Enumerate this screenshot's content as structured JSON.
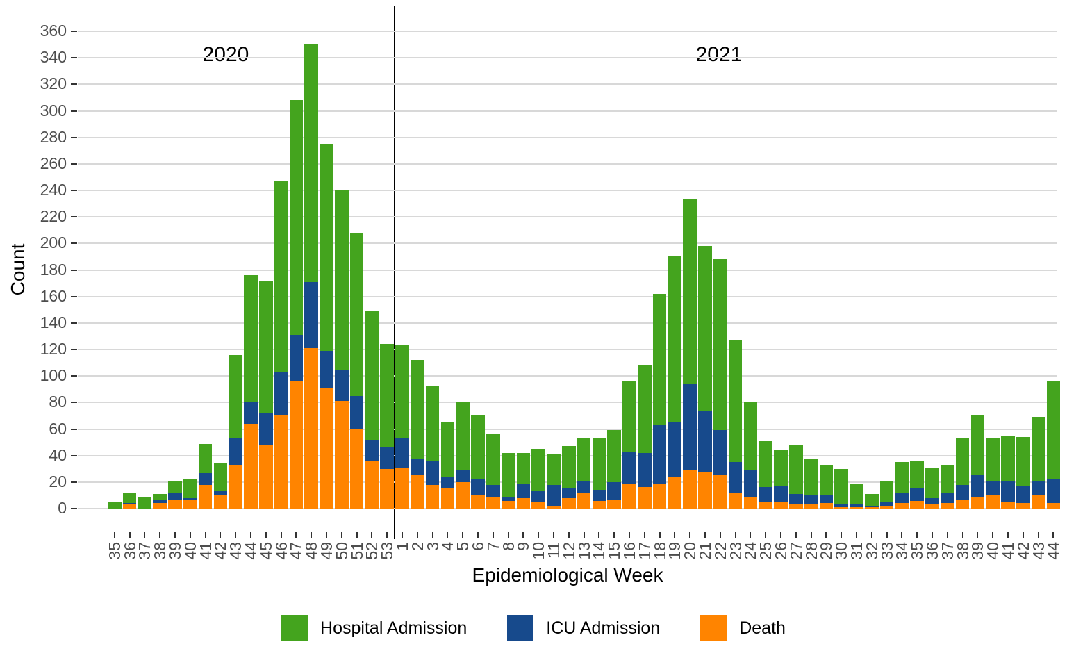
{
  "annotations": {
    "year_left": "2020",
    "year_right": "2021"
  },
  "y_axis": {
    "label": "Count",
    "ticks": [
      0,
      20,
      40,
      60,
      80,
      100,
      120,
      140,
      160,
      180,
      200,
      220,
      240,
      260,
      280,
      300,
      320,
      340,
      360
    ]
  },
  "x_axis": {
    "label": "Epidemiological Week"
  },
  "legend": [
    {
      "label": "Hospital Admission",
      "color": "#44a41e"
    },
    {
      "label": "ICU Admission",
      "color": "#174a8c"
    },
    {
      "label": "Death",
      "color": "#ff8400"
    }
  ],
  "colors": {
    "hospital": "#44a41e",
    "icu": "#174a8c",
    "death": "#ff8400",
    "gridline": "#d8d8d8",
    "axis_text": "#4d4d4d",
    "divider": "#000000"
  },
  "chart_data": {
    "type": "bar",
    "stacked": true,
    "title": "",
    "xlabel": "Epidemiological Week",
    "ylabel": "Count",
    "ylim": [
      0,
      378
    ],
    "grid": true,
    "legend_position": "bottom",
    "year_split_after_index": 18,
    "categories": [
      "35",
      "36",
      "37",
      "38",
      "39",
      "40",
      "41",
      "42",
      "43",
      "44",
      "45",
      "46",
      "47",
      "48",
      "49",
      "50",
      "51",
      "52",
      "53",
      "1",
      "2",
      "3",
      "4",
      "5",
      "6",
      "7",
      "8",
      "9",
      "10",
      "11",
      "12",
      "13",
      "14",
      "15",
      "16",
      "17",
      "18",
      "19",
      "20",
      "21",
      "22",
      "23",
      "24",
      "25",
      "26",
      "27",
      "28",
      "29",
      "30",
      "31",
      "32",
      "33",
      "34",
      "35",
      "36",
      "37",
      "38",
      "39",
      "40",
      "41",
      "42",
      "43",
      "44"
    ],
    "category_years": {
      "2020_weeks": "35-53",
      "2021_weeks": "1-44"
    },
    "series": [
      {
        "name": "Death",
        "color": "#ff8400",
        "values": [
          0,
          3,
          0,
          4,
          7,
          6,
          18,
          10,
          33,
          64,
          48,
          70,
          96,
          121,
          91,
          81,
          60,
          36,
          30,
          31,
          25,
          18,
          15,
          20,
          10,
          9,
          6,
          8,
          5,
          2,
          8,
          12,
          6,
          7,
          19,
          16,
          19,
          24,
          29,
          28,
          25,
          12,
          9,
          5,
          5,
          3,
          3,
          4,
          1,
          1,
          1,
          2,
          4,
          6,
          3,
          4,
          7,
          9,
          10,
          5,
          4,
          10,
          4
        ]
      },
      {
        "name": "ICU Admission",
        "color": "#174a8c",
        "values": [
          0,
          1,
          0,
          3,
          5,
          2,
          9,
          3,
          20,
          16,
          24,
          33,
          35,
          50,
          28,
          24,
          25,
          16,
          16,
          22,
          12,
          18,
          9,
          9,
          12,
          9,
          3,
          11,
          8,
          16,
          7,
          9,
          8,
          13,
          24,
          26,
          44,
          41,
          65,
          46,
          34,
          23,
          20,
          11,
          12,
          8,
          7,
          6,
          2,
          2,
          1,
          3,
          8,
          9,
          5,
          8,
          11,
          16,
          11,
          16,
          13,
          11,
          18
        ]
      },
      {
        "name": "Hospital Admission",
        "color": "#44a41e",
        "values": [
          5,
          8,
          9,
          4,
          9,
          14,
          22,
          21,
          63,
          96,
          100,
          144,
          177,
          179,
          156,
          135,
          123,
          97,
          78,
          70,
          75,
          56,
          41,
          51,
          48,
          38,
          33,
          23,
          32,
          23,
          32,
          32,
          39,
          39,
          53,
          66,
          99,
          126,
          140,
          124,
          129,
          92,
          51,
          35,
          27,
          37,
          28,
          23,
          27,
          16,
          9,
          16,
          23,
          21,
          23,
          21,
          35,
          46,
          32,
          34,
          37,
          48,
          74
        ]
      }
    ]
  }
}
